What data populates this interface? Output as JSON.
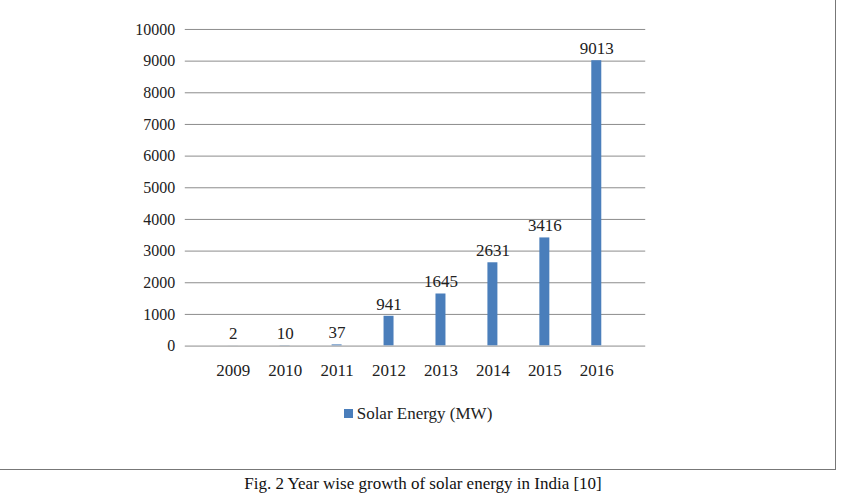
{
  "chart_data": {
    "type": "bar",
    "title": "Fig. 2 Year wise growth of solar energy in India [10]",
    "categories": [
      "2009",
      "2010",
      "2011",
      "2012",
      "2013",
      "2014",
      "2015",
      "2016"
    ],
    "series": [
      {
        "name": "Solar Energy (MW)",
        "color": "#4a7ebb",
        "values": [
          2,
          10,
          37,
          941,
          1645,
          2631,
          3416,
          9013
        ]
      }
    ],
    "ylim": [
      0,
      10000
    ],
    "yticks": [
      0,
      1000,
      2000,
      3000,
      4000,
      5000,
      6000,
      7000,
      8000,
      9000,
      10000
    ],
    "grid": true,
    "data_labels": true,
    "legend": "bottom"
  }
}
